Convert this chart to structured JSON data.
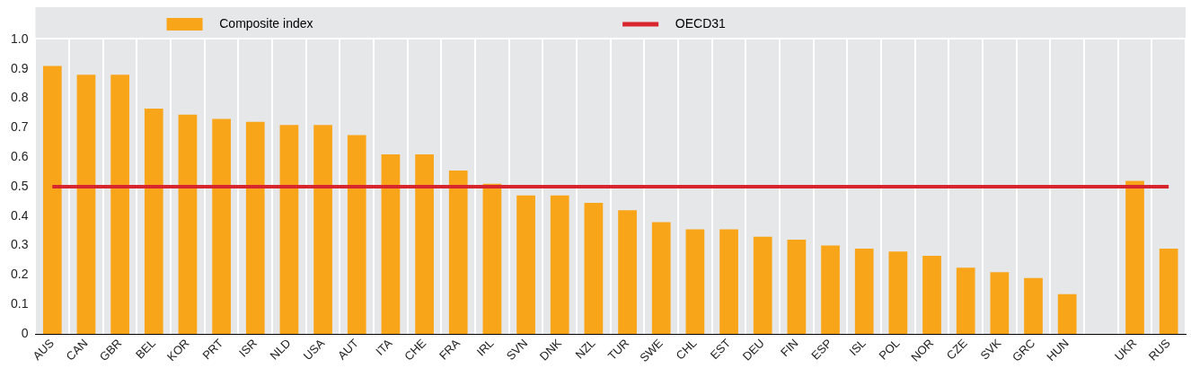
{
  "chart_data": {
    "type": "bar",
    "categories": [
      "AUS",
      "CAN",
      "GBR",
      "BEL",
      "KOR",
      "PRT",
      "ISR",
      "NLD",
      "USA",
      "AUT",
      "ITA",
      "CHE",
      "FRA",
      "IRL",
      "SVN",
      "DNK",
      "NZL",
      "TUR",
      "SWE",
      "CHL",
      "EST",
      "DEU",
      "FIN",
      "ESP",
      "ISL",
      "POL",
      "NOR",
      "CZE",
      "SVK",
      "GRC",
      "HUN",
      null,
      "UKR",
      "RUS"
    ],
    "series": [
      {
        "name": "Composite index",
        "color": "#f9a51a",
        "values": [
          0.91,
          0.88,
          0.88,
          0.765,
          0.745,
          0.73,
          0.72,
          0.71,
          0.71,
          0.675,
          0.61,
          0.61,
          0.555,
          0.51,
          0.47,
          0.47,
          0.445,
          0.42,
          0.38,
          0.355,
          0.355,
          0.33,
          0.32,
          0.3,
          0.29,
          0.28,
          0.265,
          0.225,
          0.21,
          0.19,
          0.135,
          null,
          0.52,
          0.29
        ]
      },
      {
        "name": "OECD31",
        "type": "line",
        "color": "#d7262e",
        "values": [
          0.5,
          0.5,
          0.5,
          0.5,
          0.5,
          0.5,
          0.5,
          0.5,
          0.5,
          0.5,
          0.5,
          0.5,
          0.5,
          0.5,
          0.5,
          0.5,
          0.5,
          0.5,
          0.5,
          0.5,
          0.5,
          0.5,
          0.5,
          0.5,
          0.5,
          0.5,
          0.5,
          0.5,
          0.5,
          0.5,
          0.5,
          0.5,
          0.5,
          0.5
        ]
      }
    ],
    "ylim": [
      0,
      1
    ],
    "yticks": [
      0,
      0.1,
      0.2,
      0.3,
      0.4,
      0.5,
      0.6,
      0.7,
      0.8,
      0.9,
      {
        "value": 1,
        "label": "1.0"
      }
    ],
    "grid": "x",
    "legend": "top",
    "marker": "none",
    "line_style": "solid"
  }
}
